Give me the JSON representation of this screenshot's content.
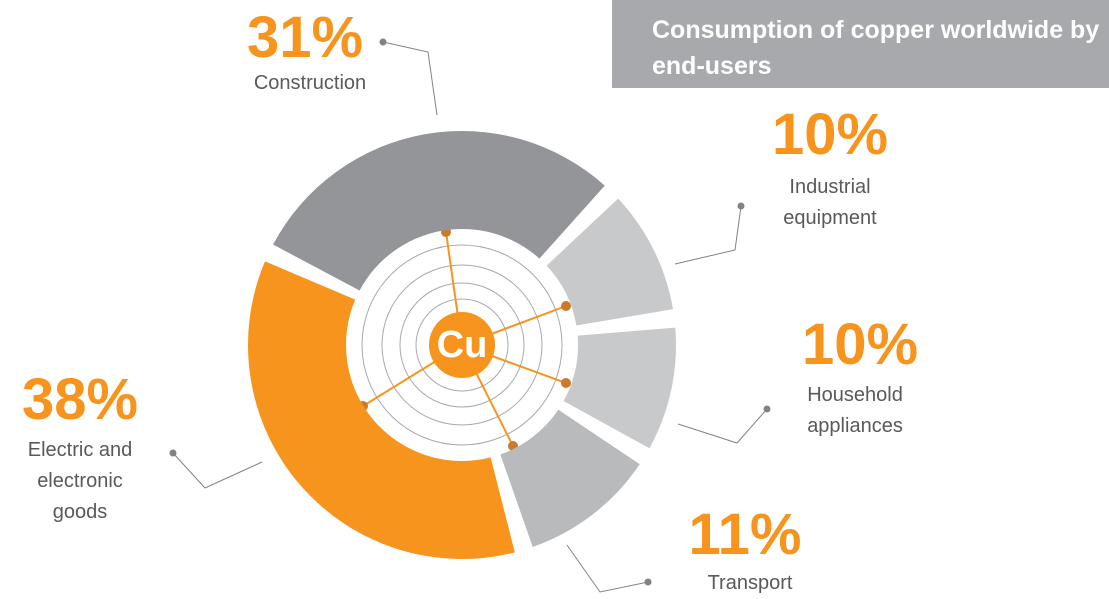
{
  "chart_data": {
    "type": "pie",
    "title": "Consumption of copper worldwide by end-users",
    "center_label": "Cu",
    "categories": [
      "Construction",
      "Industrial equipment",
      "Household appliances",
      "Transport",
      "Electric and electronic goods"
    ],
    "values": [
      31,
      10,
      10,
      11,
      38
    ],
    "value_labels": [
      "31%",
      "10%",
      "10%",
      "11%",
      "38%"
    ],
    "colors": [
      "#939598",
      "#c8c9cb",
      "#c8c9cb",
      "#b9babc",
      "#f7941d"
    ]
  }
}
